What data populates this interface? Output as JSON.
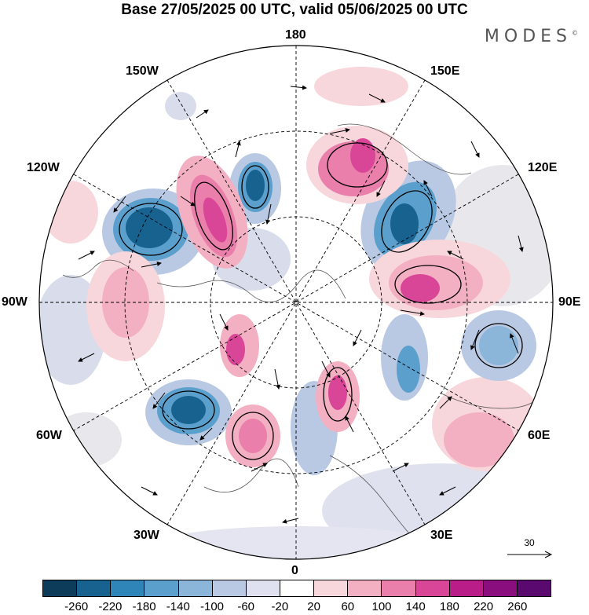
{
  "title": "Base 27/05/2025 00 UTC, valid 05/06/2025 00 UTC",
  "brand": {
    "name": "MODES",
    "mark": "©"
  },
  "longitude_labels": {
    "n180": "180",
    "e150": "150E",
    "e120": "120E",
    "e90": "90E",
    "e60": "60E",
    "e30": "30E",
    "s0": "0",
    "w30": "30W",
    "w60": "60W",
    "w90": "90W",
    "w120": "120W",
    "w150": "150W"
  },
  "reference_vector": {
    "label": "30"
  },
  "colorbar": {
    "ticks": [
      "-260",
      "-220",
      "-180",
      "-140",
      "-100",
      "-60",
      "-20",
      "20",
      "60",
      "100",
      "140",
      "180",
      "220",
      "260"
    ],
    "colors": [
      "#0d3b5a",
      "#17628f",
      "#2f85b8",
      "#5b9fcc",
      "#8bb6da",
      "#b9c9e3",
      "#e0e1f0",
      "#ffffff",
      "#f8d7dc",
      "#f3b0c2",
      "#ea7fab",
      "#d94597",
      "#b81d88",
      "#8a0e7d",
      "#5a0a6e"
    ]
  },
  "map": {
    "projection": "north-polar-stereographic",
    "grid": "dashed lat/lon every 30 degrees",
    "coastlines": true
  }
}
